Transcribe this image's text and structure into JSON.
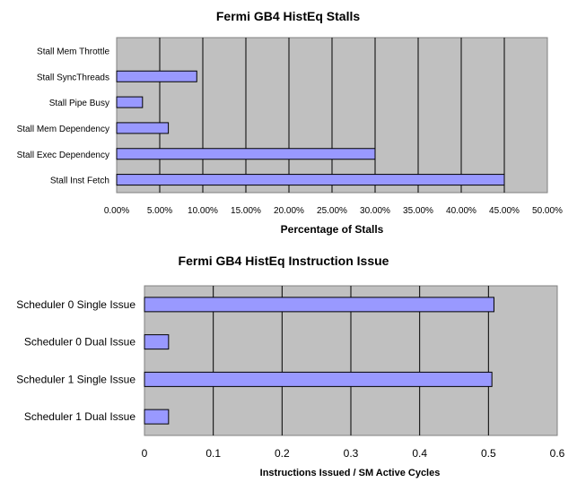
{
  "chart_data": [
    {
      "type": "bar",
      "orientation": "horizontal",
      "title": "Fermi GB4 HistEq Stalls",
      "xlabel": "Percentage of Stalls",
      "ylabel": "",
      "categories": [
        "Stall Mem Throttle",
        "Stall SyncThreads",
        "Stall Pipe Busy",
        "Stall Mem Dependency",
        "Stall Exec Dependency",
        "Stall Inst Fetch"
      ],
      "values": [
        0.0,
        9.3,
        3.0,
        6.0,
        30.0,
        45.0
      ],
      "xlim": [
        0,
        50
      ],
      "xticks": [
        "0.00%",
        "5.00%",
        "10.00%",
        "15.00%",
        "20.00%",
        "25.00%",
        "30.00%",
        "35.00%",
        "40.00%",
        "45.00%",
        "50.00%"
      ],
      "grid": true,
      "colors": {
        "bar": "#9999ff",
        "plot_bg": "#c0c0c0",
        "grid": "#000000"
      }
    },
    {
      "type": "bar",
      "orientation": "horizontal",
      "title": "Fermi GB4 HistEq Instruction Issue",
      "xlabel": "Instructions Issued / SM Active Cycles",
      "ylabel": "",
      "categories": [
        "Scheduler 0 Single Issue",
        "Scheduler 0 Dual Issue",
        "Scheduler 1 Single Issue",
        "Scheduler 1 Dual Issue"
      ],
      "values": [
        0.508,
        0.035,
        0.505,
        0.035
      ],
      "xlim": [
        0,
        0.6
      ],
      "xticks": [
        "0",
        "0.1",
        "0.2",
        "0.3",
        "0.4",
        "0.5",
        "0.6"
      ],
      "grid": true,
      "colors": {
        "bar": "#9999ff",
        "plot_bg": "#c0c0c0",
        "grid": "#000000"
      }
    }
  ]
}
